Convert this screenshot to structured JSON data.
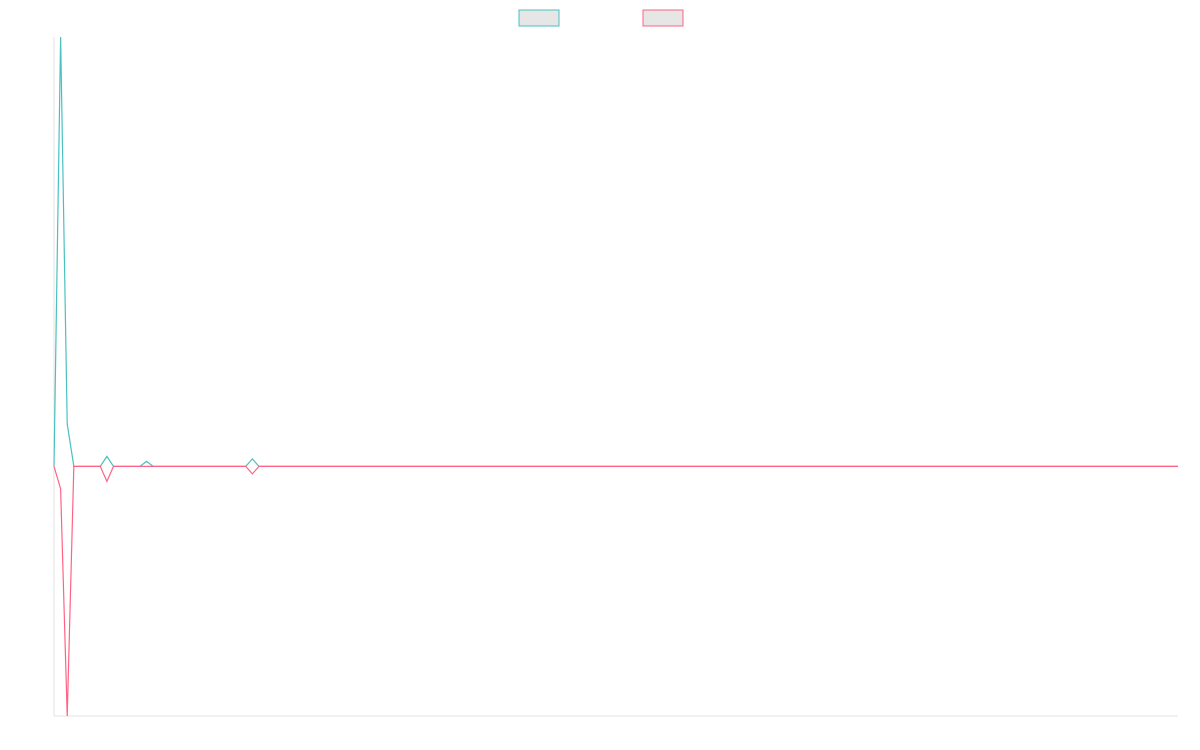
{
  "chart_data": {
    "type": "line",
    "title": "",
    "xlabel": "",
    "ylabel": "",
    "grid": false,
    "legend_position": "top-center",
    "x": [
      0,
      1,
      2,
      3,
      4,
      5,
      6,
      7,
      8,
      9,
      10,
      11,
      12,
      13,
      14,
      15,
      16,
      17,
      18,
      19,
      20,
      21,
      22,
      23,
      24,
      25,
      26,
      27,
      28,
      29,
      30,
      31,
      32,
      33,
      34,
      35,
      36,
      37,
      38,
      39,
      40,
      41,
      42,
      43,
      44,
      45,
      46,
      47,
      48,
      49,
      50,
      51,
      52,
      53,
      54,
      55,
      56,
      57,
      58,
      59,
      60,
      61,
      62,
      63,
      64,
      65,
      66,
      67,
      68,
      69,
      70,
      71,
      72,
      73,
      74,
      75,
      76,
      77,
      78,
      79,
      80,
      81,
      82,
      83,
      84,
      85,
      86,
      87,
      88,
      89,
      90,
      91,
      92,
      93,
      94,
      95,
      96,
      97,
      98,
      99,
      100,
      101,
      102,
      103,
      104,
      105,
      106,
      107,
      108,
      109,
      110,
      111,
      112,
      113,
      114,
      115,
      116,
      117,
      118,
      119,
      120,
      121,
      122,
      123,
      124,
      125,
      126,
      127,
      128,
      129,
      130,
      131,
      132,
      133,
      134,
      135,
      136,
      137,
      138,
      139,
      140,
      141,
      142,
      143,
      144,
      145,
      146,
      147,
      148,
      149,
      150,
      151,
      152,
      153,
      154,
      155,
      156,
      157,
      158,
      159,
      160,
      161,
      162,
      163,
      164,
      165,
      166,
      167,
      168,
      169,
      170
    ],
    "ylim": [
      -100,
      172
    ],
    "series": [
      {
        "color": "#4bc0c0",
        "values": [
          0,
          172,
          17,
          0,
          0,
          0,
          0,
          0,
          4,
          0,
          0,
          0,
          0,
          0,
          2,
          0,
          0,
          0,
          0,
          0,
          0,
          0,
          0,
          0,
          0,
          0,
          0,
          0,
          0,
          0,
          3,
          0,
          0,
          0,
          0,
          0,
          0,
          0,
          0,
          0,
          0,
          0,
          0,
          0,
          0,
          0,
          0,
          0,
          0,
          0,
          0,
          0,
          0,
          0,
          0,
          0,
          0,
          0,
          0,
          0,
          0,
          0,
          0,
          0,
          0,
          0,
          0,
          0,
          0,
          0,
          0,
          0,
          0,
          0,
          0,
          0,
          0,
          0,
          0,
          0,
          0,
          0,
          0,
          0,
          0,
          0,
          0,
          0,
          0,
          0,
          0,
          0,
          0,
          0,
          0,
          0,
          0,
          0,
          0,
          0,
          0,
          0,
          0,
          0,
          0,
          0,
          0,
          0,
          0,
          0,
          0,
          0,
          0,
          0,
          0,
          0,
          0,
          0,
          0,
          0,
          0,
          0,
          0,
          0,
          0,
          0,
          0,
          0,
          0,
          0,
          0,
          0,
          0,
          0,
          0,
          0,
          0,
          0,
          0,
          0,
          0,
          0,
          0,
          0,
          0,
          0,
          0,
          0,
          0,
          0,
          0,
          0,
          0,
          0,
          0,
          0,
          0,
          0,
          0,
          0,
          0,
          0,
          0,
          0,
          0,
          0,
          0,
          0,
          0,
          0,
          0
        ]
      },
      {
        "color": "#ff6384",
        "values": [
          0,
          -9,
          -100,
          0,
          0,
          0,
          0,
          0,
          -6,
          0,
          0,
          0,
          0,
          0,
          0,
          0,
          0,
          0,
          0,
          0,
          0,
          0,
          0,
          0,
          0,
          0,
          0,
          0,
          0,
          0,
          -3,
          0,
          0,
          0,
          0,
          0,
          0,
          0,
          0,
          0,
          0,
          0,
          0,
          0,
          0,
          0,
          0,
          0,
          0,
          0,
          0,
          0,
          0,
          0,
          0,
          0,
          0,
          0,
          0,
          0,
          0,
          0,
          0,
          0,
          0,
          0,
          0,
          0,
          0,
          0,
          0,
          0,
          0,
          0,
          0,
          0,
          0,
          0,
          0,
          0,
          0,
          0,
          0,
          0,
          0,
          0,
          0,
          0,
          0,
          0,
          0,
          0,
          0,
          0,
          0,
          0,
          0,
          0,
          0,
          0,
          0,
          0,
          0,
          0,
          0,
          0,
          0,
          0,
          0,
          0,
          0,
          0,
          0,
          0,
          0,
          0,
          0,
          0,
          0,
          0,
          0,
          0,
          0,
          0,
          0,
          0,
          0,
          0,
          0,
          0,
          0,
          0,
          0,
          0,
          0,
          0,
          0,
          0,
          0,
          0,
          0,
          0,
          0,
          0,
          0,
          0,
          0,
          0,
          0,
          0,
          0,
          0,
          0,
          0,
          0,
          0,
          0,
          0,
          0,
          0,
          0,
          0,
          0,
          0,
          0,
          0,
          0,
          0,
          0,
          0,
          0
        ]
      }
    ]
  }
}
